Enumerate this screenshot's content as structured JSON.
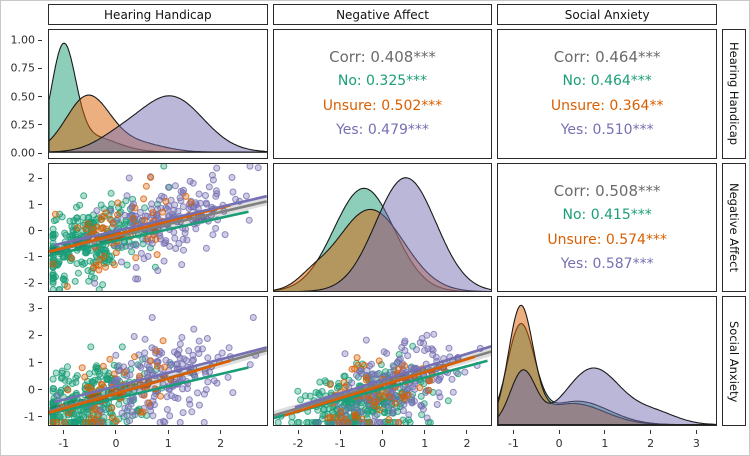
{
  "strips": {
    "top": [
      "Hearing Handicap",
      "Negative Affect",
      "Social Anxiety"
    ],
    "right": [
      "Hearing Handicap",
      "Negative Affect",
      "Social Anxiety"
    ]
  },
  "palette": {
    "overall": "#6b6b6b",
    "overall_line": "#808080",
    "no": "#1B9E77",
    "unsure": "#D95F02",
    "yes": "#7570B3"
  },
  "axes": {
    "y": [
      {
        "range": [
          -0.05,
          1.1
        ],
        "ticks": [
          {
            "v": 0,
            "label": "0.00"
          },
          {
            "v": 0.25,
            "label": "0.25"
          },
          {
            "v": 0.5,
            "label": "0.50"
          },
          {
            "v": 0.75,
            "label": "0.75"
          },
          {
            "v": 1,
            "label": "1.00"
          }
        ]
      },
      {
        "range": [
          -2.35,
          2.6
        ],
        "ticks": [
          {
            "v": -2,
            "label": "-2"
          },
          {
            "v": -1,
            "label": "-1"
          },
          {
            "v": 0,
            "label": "0"
          },
          {
            "v": 1,
            "label": "1"
          },
          {
            "v": 2,
            "label": "2"
          }
        ]
      },
      {
        "range": [
          -1.35,
          3.45
        ],
        "ticks": [
          {
            "v": -1,
            "label": "-1"
          },
          {
            "v": 0,
            "label": "0"
          },
          {
            "v": 1,
            "label": "1"
          },
          {
            "v": 2,
            "label": "2"
          },
          {
            "v": 3,
            "label": "3"
          }
        ]
      }
    ],
    "x": [
      {
        "range": [
          -1.3,
          2.9
        ],
        "ticks": [
          {
            "v": -1,
            "label": "-1"
          },
          {
            "v": 0,
            "label": "0"
          },
          {
            "v": 1,
            "label": "1"
          },
          {
            "v": 2,
            "label": "2"
          }
        ]
      },
      {
        "range": [
          -2.6,
          2.6
        ],
        "ticks": [
          {
            "v": -2,
            "label": "-2"
          },
          {
            "v": -1,
            "label": "-1"
          },
          {
            "v": 0,
            "label": "0"
          },
          {
            "v": 1,
            "label": "1"
          },
          {
            "v": 2,
            "label": "2"
          }
        ]
      },
      {
        "range": [
          -1.35,
          3.45
        ],
        "ticks": [
          {
            "v": -1,
            "label": "-1"
          },
          {
            "v": 0,
            "label": "0"
          },
          {
            "v": 1,
            "label": "1"
          },
          {
            "v": 2,
            "label": "2"
          },
          {
            "v": 3,
            "label": "3"
          }
        ]
      }
    ]
  },
  "chart_data": [
    {
      "panel": "hearing-handicap-density",
      "type": "density",
      "x_range": [
        -1.3,
        2.9
      ],
      "y_range": [
        -0.05,
        1.1
      ],
      "series": [
        {
          "key": "no",
          "name": "No",
          "mixture": [
            {
              "mu": -1.02,
              "sd": 0.23,
              "h": 0.9
            },
            {
              "mu": -0.5,
              "sd": 0.5,
              "h": 0.14
            }
          ]
        },
        {
          "key": "unsure",
          "name": "Unsure",
          "mixture": [
            {
              "mu": -0.55,
              "sd": 0.42,
              "h": 0.5
            },
            {
              "mu": 0.4,
              "sd": 0.5,
              "h": 0.08
            }
          ]
        },
        {
          "key": "yes",
          "name": "Yes",
          "mixture": [
            {
              "mu": 1.05,
              "sd": 0.62,
              "h": 0.5
            },
            {
              "mu": 0.0,
              "sd": 0.45,
              "h": 0.1
            }
          ]
        }
      ]
    },
    {
      "panel": "corr-hearing-negative",
      "type": "corr-text",
      "lines": [
        {
          "key": "overall",
          "text": "Corr: 0.408***"
        },
        {
          "key": "no",
          "text": "No: 0.325***"
        },
        {
          "key": "unsure",
          "text": "Unsure: 0.502***"
        },
        {
          "key": "yes",
          "text": "Yes: 0.479***"
        }
      ]
    },
    {
      "panel": "corr-hearing-social",
      "type": "corr-text",
      "lines": [
        {
          "key": "overall",
          "text": "Corr: 0.464***"
        },
        {
          "key": "no",
          "text": "No: 0.464***"
        },
        {
          "key": "unsure",
          "text": "Unsure: 0.364**"
        },
        {
          "key": "yes",
          "text": "Yes: 0.510***"
        }
      ]
    },
    {
      "panel": "negative-affect-vs-hearing-handicap",
      "type": "scatter",
      "x_range": [
        -1.3,
        2.9
      ],
      "y_range": [
        -2.35,
        2.6
      ],
      "points": [
        {
          "key": "no",
          "n": 280,
          "cx": -0.5,
          "cy": -0.45,
          "sx": 0.55,
          "sy": 0.85,
          "rho": 0.35
        },
        {
          "key": "yes",
          "n": 180,
          "cx": 0.95,
          "cy": 0.4,
          "sx": 0.7,
          "sy": 0.8,
          "rho": 0.45
        },
        {
          "key": "unsure",
          "n": 65,
          "cx": 0.0,
          "cy": -0.1,
          "sx": 0.6,
          "sy": 0.85,
          "rho": 0.5
        }
      ],
      "lines": [
        {
          "key": "overall_line",
          "x1": -1.3,
          "y1": -0.8,
          "x2": 2.9,
          "y2": 1.15,
          "band": 0.16
        },
        {
          "key": "no",
          "x1": -1.3,
          "y1": -0.95,
          "x2": 2.55,
          "y2": 0.75
        },
        {
          "key": "unsure",
          "x1": -1.3,
          "y1": -0.8,
          "x2": 2.2,
          "y2": 1.0
        },
        {
          "key": "yes",
          "x1": -1.2,
          "y1": -0.55,
          "x2": 2.9,
          "y2": 1.35
        }
      ]
    },
    {
      "panel": "negative-affect-density",
      "type": "density",
      "x_range": [
        -2.6,
        2.6
      ],
      "series": [
        {
          "key": "no",
          "name": "No",
          "mixture": [
            {
              "mu": -0.45,
              "sd": 0.72,
              "h": 0.88
            }
          ]
        },
        {
          "key": "unsure",
          "name": "Unsure",
          "mixture": [
            {
              "mu": -0.3,
              "sd": 0.8,
              "h": 0.7
            },
            {
              "mu": -1.7,
              "sd": 0.35,
              "h": 0.07
            }
          ]
        },
        {
          "key": "yes",
          "name": "Yes",
          "mixture": [
            {
              "mu": 0.55,
              "sd": 0.72,
              "h": 0.97
            }
          ]
        }
      ]
    },
    {
      "panel": "corr-negative-social",
      "type": "corr-text",
      "lines": [
        {
          "key": "overall",
          "text": "Corr: 0.508***"
        },
        {
          "key": "no",
          "text": "No: 0.415***"
        },
        {
          "key": "unsure",
          "text": "Unsure: 0.574***"
        },
        {
          "key": "yes",
          "text": "Yes: 0.587***"
        }
      ]
    },
    {
      "panel": "social-anxiety-vs-hearing-handicap",
      "type": "scatter",
      "x_range": [
        -1.3,
        2.9
      ],
      "y_range": [
        -1.35,
        3.45
      ],
      "points": [
        {
          "key": "no",
          "n": 280,
          "cx": -0.5,
          "cy": -0.5,
          "sx": 0.55,
          "sy": 0.7,
          "rho": 0.4
        },
        {
          "key": "yes",
          "n": 180,
          "cx": 0.9,
          "cy": 0.35,
          "sx": 0.7,
          "sy": 0.85,
          "rho": 0.45
        },
        {
          "key": "unsure",
          "n": 65,
          "cx": -0.05,
          "cy": -0.25,
          "sx": 0.6,
          "sy": 0.75,
          "rho": 0.5
        }
      ],
      "lines": [
        {
          "key": "overall_line",
          "x1": -1.3,
          "y1": -0.85,
          "x2": 2.9,
          "y2": 1.45,
          "band": 0.17
        },
        {
          "key": "no",
          "x1": -1.3,
          "y1": -0.95,
          "x2": 2.55,
          "y2": 0.8
        },
        {
          "key": "unsure",
          "x1": -1.3,
          "y1": -0.9,
          "x2": 2.2,
          "y2": 1.05
        },
        {
          "key": "yes",
          "x1": -1.2,
          "y1": -0.5,
          "x2": 2.9,
          "y2": 1.55
        }
      ]
    },
    {
      "panel": "social-anxiety-vs-negative-affect",
      "type": "scatter",
      "x_range": [
        -2.6,
        2.6
      ],
      "y_range": [
        -1.35,
        3.45
      ],
      "points": [
        {
          "key": "no",
          "n": 280,
          "cx": -0.45,
          "cy": -0.5,
          "sx": 0.8,
          "sy": 0.7,
          "rho": 0.4
        },
        {
          "key": "yes",
          "n": 180,
          "cx": 0.55,
          "cy": 0.3,
          "sx": 0.8,
          "sy": 0.85,
          "rho": 0.5
        },
        {
          "key": "unsure",
          "n": 65,
          "cx": -0.25,
          "cy": -0.3,
          "sx": 0.8,
          "sy": 0.75,
          "rho": 0.55
        }
      ],
      "lines": [
        {
          "key": "overall_line",
          "x1": -2.6,
          "y1": -1.0,
          "x2": 2.6,
          "y2": 1.4,
          "band": 0.17
        },
        {
          "key": "no",
          "x1": -2.6,
          "y1": -1.1,
          "x2": 2.5,
          "y2": 1.05
        },
        {
          "key": "unsure",
          "x1": -2.35,
          "y1": -1.0,
          "x2": 2.2,
          "y2": 1.2
        },
        {
          "key": "yes",
          "x1": -2.1,
          "y1": -0.7,
          "x2": 2.6,
          "y2": 1.6
        }
      ]
    },
    {
      "panel": "social-anxiety-density",
      "type": "density",
      "x_range": [
        -1.35,
        3.45
      ],
      "series": [
        {
          "key": "no",
          "name": "No",
          "mixture": [
            {
              "mu": -0.85,
              "sd": 0.3,
              "h": 0.82
            },
            {
              "mu": 0.4,
              "sd": 0.7,
              "h": 0.2
            }
          ]
        },
        {
          "key": "unsure",
          "name": "Unsure",
          "mixture": [
            {
              "mu": -0.85,
              "sd": 0.27,
              "h": 0.97
            },
            {
              "mu": 0.3,
              "sd": 0.7,
              "h": 0.18
            }
          ]
        },
        {
          "key": "yes",
          "name": "Yes",
          "mixture": [
            {
              "mu": -0.8,
              "sd": 0.28,
              "h": 0.45
            },
            {
              "mu": 0.75,
              "sd": 0.6,
              "h": 0.48
            },
            {
              "mu": 2.1,
              "sd": 0.5,
              "h": 0.1
            }
          ]
        }
      ]
    }
  ]
}
